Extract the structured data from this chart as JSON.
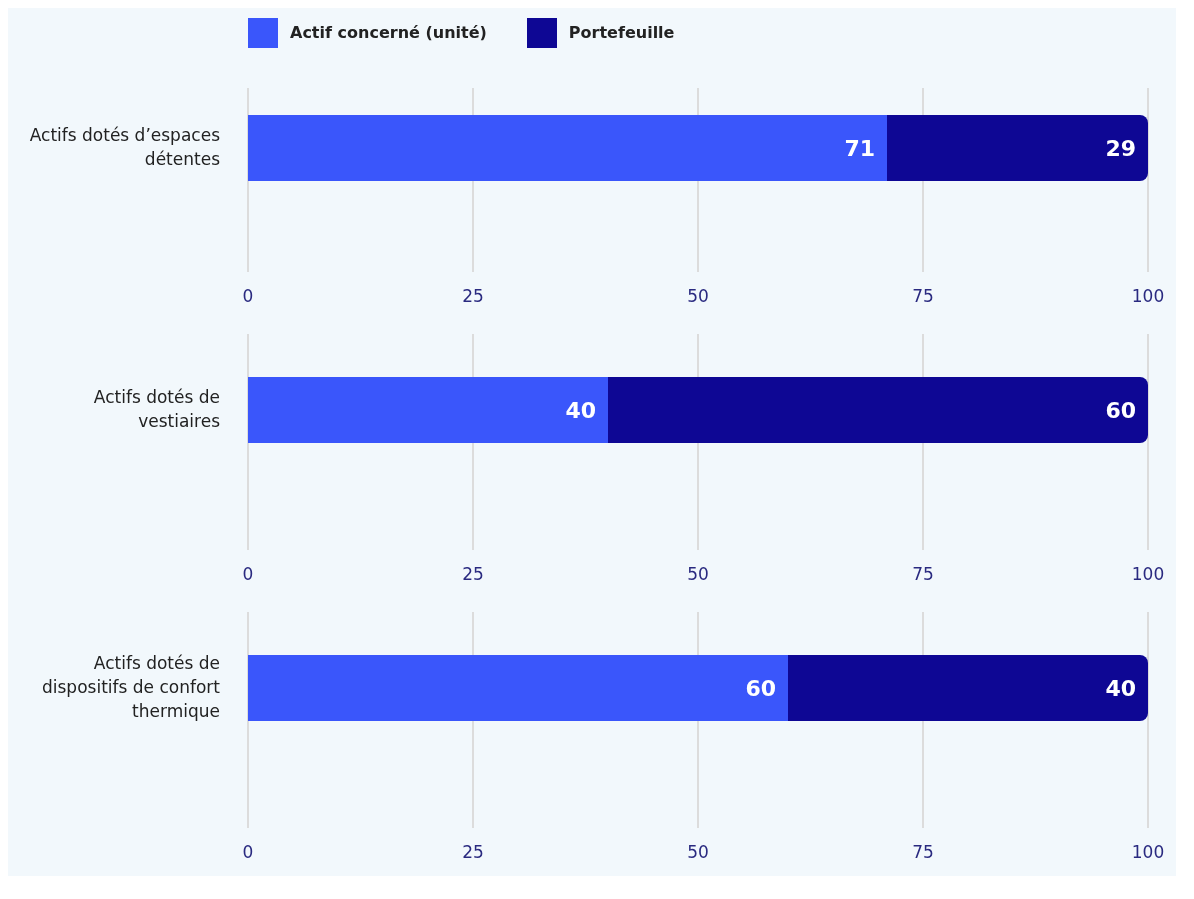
{
  "chart_data": [
    {
      "type": "bar",
      "orientation": "horizontal",
      "stacked": true,
      "categories": [
        "Actifs dotés d’espaces détentes"
      ],
      "series": [
        {
          "name": "Actif concerné (unité)",
          "color": "#3a56fb",
          "values": [
            71
          ]
        },
        {
          "name": "Portefeuille",
          "color": "#0e0794",
          "values": [
            29
          ]
        }
      ],
      "xlim": [
        0,
        100
      ],
      "xticks": [
        0,
        25,
        50,
        75,
        100
      ],
      "grid": "x",
      "legend": "top",
      "data_labels": true
    },
    {
      "type": "bar",
      "orientation": "horizontal",
      "stacked": true,
      "categories": [
        "Actifs dotés de vestiaires"
      ],
      "series": [
        {
          "color": "#3a56fb",
          "values": [
            40
          ]
        },
        {
          "color": "#0e0794",
          "values": [
            60
          ]
        }
      ],
      "xlim": [
        0,
        100
      ],
      "xticks": [
        0,
        25,
        50,
        75,
        100
      ],
      "grid": "x",
      "data_labels": true
    },
    {
      "type": "bar",
      "orientation": "horizontal",
      "stacked": true,
      "categories": [
        "Actifs dotés de dispositifs de confort thermique"
      ],
      "series": [
        {
          "color": "#3a56fb",
          "values": [
            60
          ]
        },
        {
          "color": "#0e0794",
          "values": [
            40
          ]
        }
      ],
      "xlim": [
        0,
        100
      ],
      "xticks": [
        0,
        25,
        50,
        75,
        100
      ],
      "grid": "x",
      "data_labels": true
    }
  ]
}
